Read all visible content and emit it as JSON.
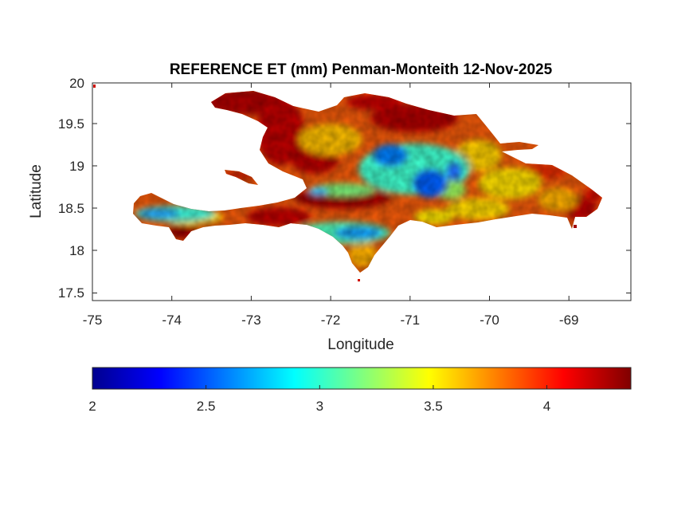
{
  "chart_data": {
    "type": "heatmap",
    "title": "REFERENCE ET (mm) Penman-Monteith 12-Nov-2025",
    "xlabel": "Longitude",
    "ylabel": "Latitude",
    "xlim": [
      -75,
      -68.22
    ],
    "ylim": [
      17.4,
      20
    ],
    "x_ticks": [
      "-75",
      "-74",
      "-73",
      "-72",
      "-71",
      "-70",
      "-69"
    ],
    "y_ticks": [
      "17.5",
      "18",
      "18.5",
      "19",
      "19.5",
      "20"
    ],
    "colorbar": {
      "colormap": "jet",
      "range": [
        2,
        4.37
      ],
      "ticks": [
        "2",
        "2.5",
        "3",
        "3.5",
        "4"
      ]
    }
  }
}
